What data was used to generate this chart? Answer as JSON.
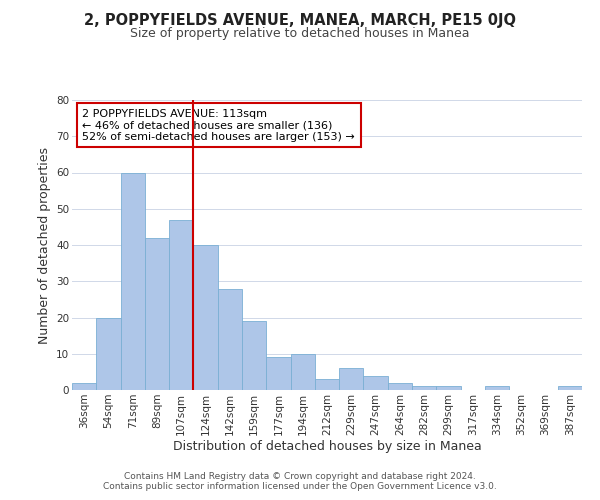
{
  "title": "2, POPPYFIELDS AVENUE, MANEA, MARCH, PE15 0JQ",
  "subtitle": "Size of property relative to detached houses in Manea",
  "bar_labels": [
    "36sqm",
    "54sqm",
    "71sqm",
    "89sqm",
    "107sqm",
    "124sqm",
    "142sqm",
    "159sqm",
    "177sqm",
    "194sqm",
    "212sqm",
    "229sqm",
    "247sqm",
    "264sqm",
    "282sqm",
    "299sqm",
    "317sqm",
    "334sqm",
    "352sqm",
    "369sqm",
    "387sqm"
  ],
  "bar_values": [
    2,
    20,
    60,
    42,
    47,
    40,
    28,
    19,
    9,
    10,
    3,
    6,
    4,
    2,
    1,
    1,
    0,
    1,
    0,
    0,
    1
  ],
  "bar_color": "#aec6e8",
  "bar_edge_color": "#7aafd4",
  "highlight_line_color": "#cc0000",
  "annotation_line1": "2 POPPYFIELDS AVENUE: 113sqm",
  "annotation_line2": "← 46% of detached houses are smaller (136)",
  "annotation_line3": "52% of semi-detached houses are larger (153) →",
  "annotation_box_edge_color": "#cc0000",
  "xlabel": "Distribution of detached houses by size in Manea",
  "ylabel": "Number of detached properties",
  "ylim": [
    0,
    80
  ],
  "yticks": [
    0,
    10,
    20,
    30,
    40,
    50,
    60,
    70,
    80
  ],
  "footer_line1": "Contains HM Land Registry data © Crown copyright and database right 2024.",
  "footer_line2": "Contains public sector information licensed under the Open Government Licence v3.0.",
  "title_fontsize": 10.5,
  "subtitle_fontsize": 9,
  "axis_label_fontsize": 9,
  "tick_fontsize": 7.5,
  "annotation_fontsize": 8,
  "footer_fontsize": 6.5
}
